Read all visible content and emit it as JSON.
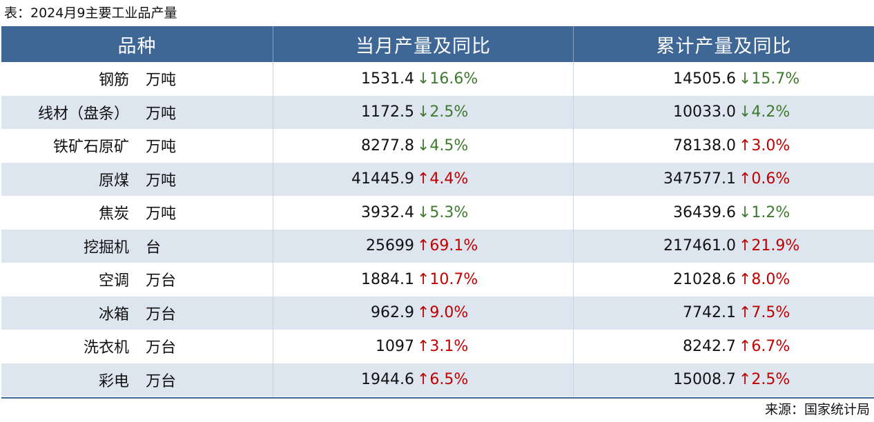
{
  "caption": "表：2024月9主要工业品产量",
  "headers": [
    "品种",
    "当月产量及同比",
    "累计产量及同比"
  ],
  "rows": [
    {
      "name": "钢筋",
      "unit": "万吨",
      "month": "1531.4",
      "month_chg": "↓16.6%",
      "month_dir": "down",
      "cum": "14505.6",
      "cum_chg": "↓15.7%",
      "cum_dir": "down"
    },
    {
      "name": "线材（盘条）",
      "unit": "万吨",
      "month": "1172.5",
      "month_chg": "↓2.5%",
      "month_dir": "down",
      "cum": "10033.0",
      "cum_chg": "↓4.2%",
      "cum_dir": "down"
    },
    {
      "name": "铁矿石原矿",
      "unit": "万吨",
      "month": "8277.8",
      "month_chg": "↓4.5%",
      "month_dir": "down",
      "cum": "78138.0",
      "cum_chg": "↑3.0%",
      "cum_dir": "up"
    },
    {
      "name": "原煤",
      "unit": "万吨",
      "month": "41445.9",
      "month_chg": "↑4.4%",
      "month_dir": "up",
      "cum": "347577.1",
      "cum_chg": "↑0.6%",
      "cum_dir": "up"
    },
    {
      "name": "焦炭",
      "unit": "万吨",
      "month": "3932.4",
      "month_chg": "↓5.3%",
      "month_dir": "down",
      "cum": "36439.6",
      "cum_chg": "↓1.2%",
      "cum_dir": "down"
    },
    {
      "name": "挖掘机",
      "unit": "台",
      "month": "25699",
      "month_chg": "↑69.1%",
      "month_dir": "up",
      "cum": "217461.0",
      "cum_chg": "↑21.9%",
      "cum_dir": "up"
    },
    {
      "name": "空调",
      "unit": "万台",
      "month": "1884.1",
      "month_chg": "↑10.7%",
      "month_dir": "up",
      "cum": "21028.6",
      "cum_chg": "↑8.0%",
      "cum_dir": "up"
    },
    {
      "name": "冰箱",
      "unit": "万台",
      "month": "962.9",
      "month_chg": "↑9.0%",
      "month_dir": "up",
      "cum": "7742.1",
      "cum_chg": "↑7.5%",
      "cum_dir": "up"
    },
    {
      "name": "洗衣机",
      "unit": "万台",
      "month": "1097",
      "month_chg": "↑3.1%",
      "month_dir": "up",
      "cum": "8242.7",
      "cum_chg": "↑6.7%",
      "cum_dir": "up"
    },
    {
      "name": "彩电",
      "unit": "万台",
      "month": "1944.6",
      "month_chg": "↑6.5%",
      "month_dir": "up",
      "cum": "15008.7",
      "cum_chg": "↑2.5%",
      "cum_dir": "up"
    }
  ],
  "source": "来源：国家统计局",
  "colors": {
    "header_bg": "#3f6796",
    "alt_row_bg": "#dde5ef",
    "up": "#c00000",
    "down": "#3e7a2e"
  }
}
